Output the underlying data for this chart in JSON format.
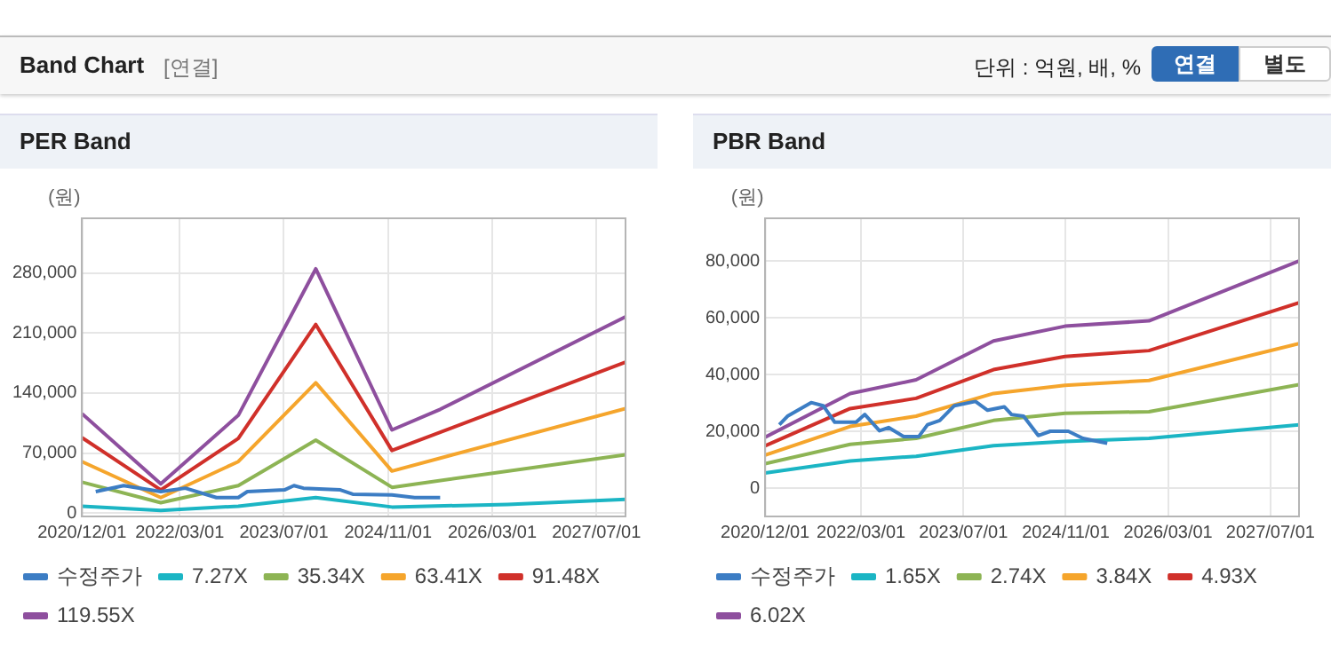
{
  "chart_data": [
    {
      "type": "other",
      "title": "Band Chart",
      "annotations": [
        "[연결]",
        "단위 : 억원, 배, %",
        "연결",
        "별도"
      ]
    },
    {
      "type": "line",
      "title": "PER Band",
      "ylabel": "(원)",
      "xlim": [
        "2020-12-01",
        "2027-11-15"
      ],
      "xticks": [
        {
          "value": "2020-12-01",
          "label": "2020/12/01"
        },
        {
          "value": "2022-03-01",
          "label": "2022/03/01"
        },
        {
          "value": "2023-07-01",
          "label": "2023/07/01"
        },
        {
          "value": "2024-11-01",
          "label": "2024/11/01"
        },
        {
          "value": "2026-03-01",
          "label": "2026/03/01"
        },
        {
          "value": "2027-07-01",
          "label": "2027/07/01"
        }
      ],
      "ylim": [
        -4000,
        344000
      ],
      "yticks": [
        0,
        {
          "value": 70000,
          "label": "70,000"
        },
        {
          "value": 140000,
          "label": "140,000"
        },
        {
          "value": 210000,
          "label": "210,000"
        },
        {
          "value": 280000,
          "label": "280,000"
        }
      ],
      "grid": true,
      "legend": "bottom",
      "series": [
        {
          "name": "수정주가",
          "color": "#3c7dc4",
          "x": [
            "2021-02-04",
            "2021-06-13",
            "2021-12-04",
            "2022-03-28",
            "2022-08-21",
            "2022-12-01",
            "2023-01-13",
            "2023-07-04",
            "2023-08-18",
            "2023-10-01",
            "2024-03-22",
            "2024-05-19",
            "2024-11-19",
            "2025-03-04",
            "2025-07-01"
          ],
          "values": [
            25000,
            32000,
            25000,
            29000,
            18000,
            18000,
            25000,
            27000,
            32000,
            29000,
            27000,
            22000,
            21000,
            18000,
            18000
          ]
        },
        {
          "name": "7.27X",
          "color": "#1bb5c4",
          "x": [
            "2020-12-01",
            "2021-12-04",
            "2022-12-01",
            "2023-11-28",
            "2024-11-19",
            "2026-05-13",
            "2027-11-15"
          ],
          "values": [
            8000,
            3000,
            8000,
            18000,
            7000,
            10000,
            16000
          ]
        },
        {
          "name": "35.34X",
          "color": "#8db454",
          "x": [
            "2020-12-01",
            "2021-12-04",
            "2022-12-01",
            "2023-11-28",
            "2024-11-19",
            "2027-11-15"
          ],
          "values": [
            36000,
            12000,
            32000,
            85000,
            30000,
            68000
          ]
        },
        {
          "name": "63.41X",
          "color": "#f5a52c",
          "x": [
            "2020-12-01",
            "2021-12-04",
            "2022-12-01",
            "2023-11-28",
            "2024-11-19",
            "2027-11-15"
          ],
          "values": [
            60000,
            18000,
            60000,
            152000,
            49000,
            122000
          ]
        },
        {
          "name": "91.48X",
          "color": "#d0302a",
          "x": [
            "2020-12-01",
            "2021-12-04",
            "2022-12-01",
            "2023-11-28",
            "2024-11-19",
            "2027-11-15"
          ],
          "values": [
            88000,
            27000,
            87000,
            220000,
            73000,
            176000
          ]
        },
        {
          "name": "119.55X",
          "color": "#8e4f9e",
          "x": [
            "2020-12-01",
            "2021-12-04",
            "2022-12-01",
            "2023-11-28",
            "2024-11-19",
            "2025-07-01",
            "2027-11-15"
          ],
          "values": [
            116000,
            34000,
            114000,
            285000,
            97000,
            121000,
            229000
          ]
        }
      ]
    },
    {
      "type": "line",
      "title": "PBR Band",
      "ylabel": "(원)",
      "xlim": [
        "2020-12-01",
        "2027-11-15"
      ],
      "xticks": [
        {
          "value": "2020-12-01",
          "label": "2020/12/01"
        },
        {
          "value": "2022-03-01",
          "label": "2022/03/01"
        },
        {
          "value": "2023-07-01",
          "label": "2023/07/01"
        },
        {
          "value": "2024-11-01",
          "label": "2024/11/01"
        },
        {
          "value": "2026-03-01",
          "label": "2026/03/01"
        },
        {
          "value": "2027-07-01",
          "label": "2027/07/01"
        }
      ],
      "ylim": [
        -10000,
        95000
      ],
      "yticks": [
        0,
        {
          "value": 20000,
          "label": "20,000"
        },
        {
          "value": 40000,
          "label": "40,000"
        },
        {
          "value": 60000,
          "label": "60,000"
        },
        {
          "value": 80000,
          "label": "80,000"
        }
      ],
      "grid": true,
      "legend": "bottom",
      "series": [
        {
          "name": "수정주가",
          "color": "#3c7dc4",
          "x": [
            "2021-02-07",
            "2021-03-16",
            "2021-07-07",
            "2021-09-03",
            "2021-10-28",
            "2022-02-07",
            "2022-03-19",
            "2022-05-28",
            "2022-07-10",
            "2022-09-21",
            "2022-12-01",
            "2023-01-13",
            "2023-03-10",
            "2023-05-19",
            "2023-08-28",
            "2023-10-25",
            "2024-01-13",
            "2024-02-16",
            "2024-04-13",
            "2024-06-22",
            "2024-08-19",
            "2024-11-13",
            "2025-01-22",
            "2025-05-16"
          ],
          "values": [
            22300,
            25300,
            30100,
            29000,
            23200,
            23200,
            25900,
            20200,
            21300,
            18100,
            18100,
            22300,
            23800,
            29000,
            30500,
            27400,
            28600,
            25900,
            25300,
            18500,
            20000,
            20000,
            17500,
            15800
          ]
        },
        {
          "name": "1.65X",
          "color": "#1bb5c4",
          "x": [
            "2020-12-01",
            "2022-01-10",
            "2022-11-19",
            "2023-11-22",
            "2024-10-28",
            "2025-12-01",
            "2027-11-15"
          ],
          "values": [
            5300,
            9500,
            11200,
            14900,
            16400,
            17500,
            22300
          ]
        },
        {
          "name": "2.74X",
          "color": "#8db454",
          "x": [
            "2020-12-01",
            "2022-01-10",
            "2022-11-19",
            "2023-11-22",
            "2024-10-28",
            "2025-12-01",
            "2027-11-15"
          ],
          "values": [
            8600,
            15400,
            17500,
            23800,
            26300,
            26900,
            36400
          ]
        },
        {
          "name": "3.84X",
          "color": "#f5a52c",
          "x": [
            "2020-12-01",
            "2022-01-10",
            "2022-11-19",
            "2023-11-22",
            "2024-10-28",
            "2025-12-01",
            "2027-11-15"
          ],
          "values": [
            11600,
            21700,
            25300,
            33300,
            36200,
            37900,
            50900
          ]
        },
        {
          "name": "4.93X",
          "color": "#d0302a",
          "x": [
            "2020-12-01",
            "2022-01-10",
            "2022-11-19",
            "2023-11-22",
            "2024-10-28",
            "2025-12-01",
            "2027-11-15"
          ],
          "values": [
            14900,
            28000,
            31600,
            41700,
            46300,
            48400,
            65300
          ]
        },
        {
          "name": "6.02X",
          "color": "#8e4f9e",
          "x": [
            "2020-12-01",
            "2022-01-10",
            "2022-11-19",
            "2023-11-22",
            "2024-10-28",
            "2025-12-01",
            "2027-11-15"
          ],
          "values": [
            17900,
            33300,
            38100,
            51800,
            57000,
            58900,
            80000
          ]
        }
      ]
    }
  ]
}
